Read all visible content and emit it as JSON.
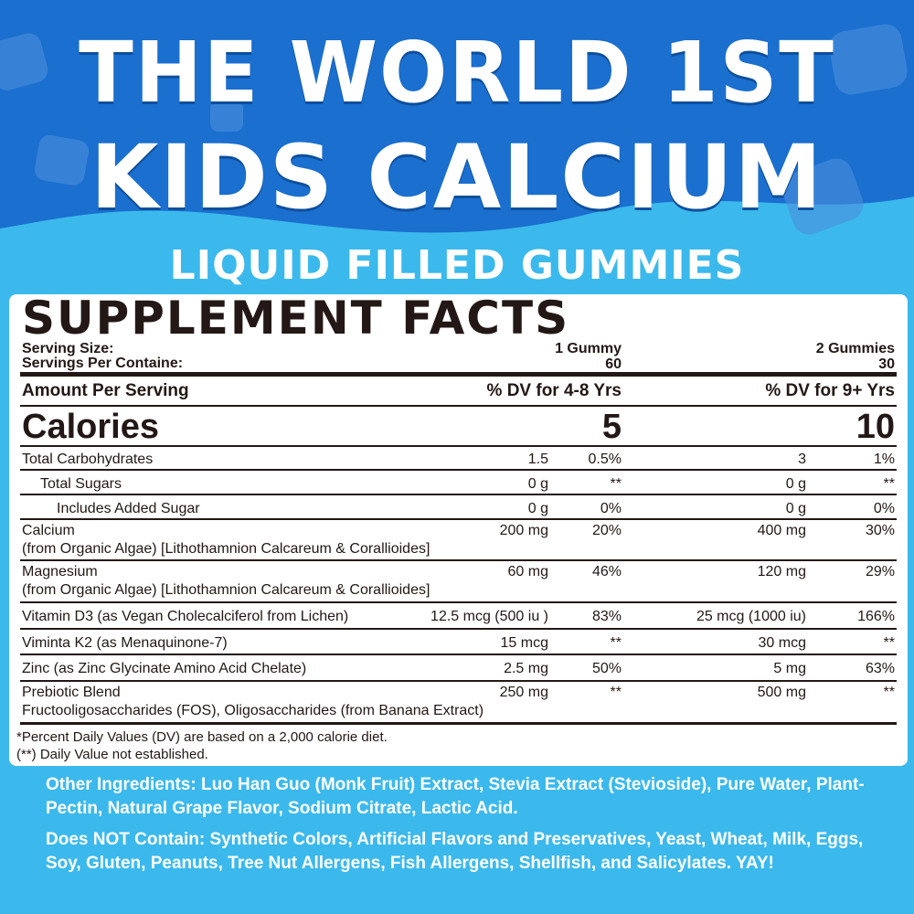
{
  "colors": {
    "dark_blue": "#1a6fcf",
    "light_blue": "#3bb9ec",
    "panel": "#ffffff",
    "text": "#231815"
  },
  "header": {
    "line1": "THE WORLD 1ST",
    "line2": "KIDS CALCIUM",
    "line3": "LIQUID FILLED GUMMIES"
  },
  "facts": {
    "title": "SUPPLEMENT FACTS",
    "serving_size_label": "Serving Size:",
    "servings_label": "Servings Per Containe:",
    "serving_size_1": "1 Gummy",
    "servings_1": "60",
    "serving_size_2": "2 Gummies",
    "servings_2": "30",
    "amount_label": "Amount Per Serving",
    "dv1_label": "% DV for 4-8 Yrs",
    "dv2_label": "% DV for 9+ Yrs",
    "calories_label": "Calories",
    "calories_1": "5",
    "calories_2": "10",
    "rows": [
      {
        "name": "Total Carbohydrates",
        "sub": "",
        "a1": "1.5",
        "d1": "0.5%",
        "a2": "3",
        "d2": "1%"
      },
      {
        "name": "Total Sugars",
        "sub": "",
        "a1": "0 g",
        "d1": "**",
        "a2": "0 g",
        "d2": "**"
      },
      {
        "name": "Includes Added Sugar",
        "sub": "",
        "a1": "0 g",
        "d1": "0%",
        "a2": "0 g",
        "d2": "0%"
      },
      {
        "name": "Calcium",
        "sub": "(from Organic Algae) [Lithothamnion Calcareum & Corallioides]",
        "a1": "200 mg",
        "d1": "20%",
        "a2": "400 mg",
        "d2": "30%"
      },
      {
        "name": "Magnesium",
        "sub": "(from Organic Algae) [Lithothamnion Calcareum & Corallioides]",
        "a1": "60 mg",
        "d1": "46%",
        "a2": "120 mg",
        "d2": "29%"
      },
      {
        "name": "Vitamin D3 (as Vegan Cholecalciferol from Lichen)",
        "sub": "",
        "a1": "12.5 mcg (500 iu )",
        "d1": "83%",
        "a2": "25 mcg (1000 iu)",
        "d2": "166%"
      },
      {
        "name": "Viminta K2 (as Menaquinone-7)",
        "sub": "",
        "a1": "15 mcg",
        "d1": "**",
        "a2": "30 mcg",
        "d2": "**"
      },
      {
        "name": "Zinc (as Zinc Glycinate Amino Acid Chelate)",
        "sub": "",
        "a1": "2.5 mg",
        "d1": "50%",
        "a2": "5 mg",
        "d2": "63%"
      },
      {
        "name": "Prebiotic Blend",
        "sub": "Fructooligosaccharides (FOS), Oligosaccharides (from Banana Extract)",
        "a1": "250 mg",
        "d1": "**",
        "a2": "500 mg",
        "d2": "**"
      }
    ],
    "footnote1": "*Percent Daily Values (DV) are based on a 2,000 calorie diet.",
    "footnote2": "(**) Daily Value not established."
  },
  "other_ingredients": "Other Ingredients: Luo Han Guo (Monk Fruit) Extract, Stevia Extract (Stevioside), Pure Water, Plant-Pectin, Natural Grape Flavor, Sodium Citrate, Lactic Acid.",
  "does_not_contain": "Does NOT Contain: Synthetic Colors, Artificial Flavors and Preservatives, Yeast, Wheat, Milk, Eggs, Soy, Gluten, Peanuts, Tree Nut Allergens, Fish Allergens, Shellfish, and Salicylates. YAY!"
}
